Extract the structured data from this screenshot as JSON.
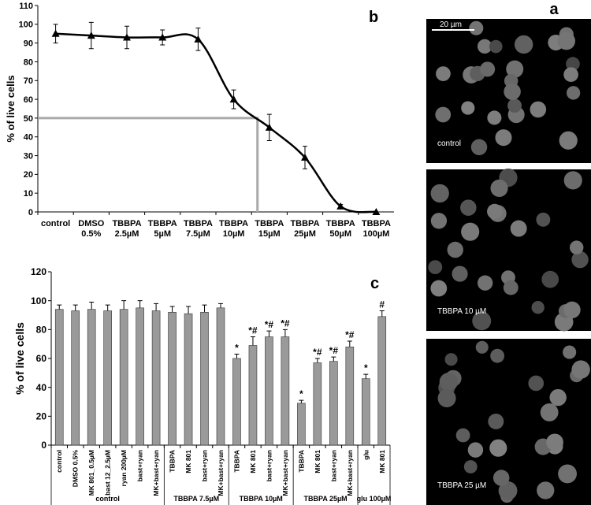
{
  "chart_data": [
    {
      "type": "line",
      "panel_label": "b",
      "y_label": "% of live cells",
      "color": "#000000",
      "categories": [
        "control",
        "DMSO\n0.5%",
        "TBBPA\n2.5µM",
        "TBBPA\n5µM",
        "TBBPA\n7.5µM",
        "TBBPA\n10µM",
        "TBBPA\n15µM",
        "TBBPA\n25µM",
        "TBBPA\n50µM",
        "TBBPA\n100µM"
      ],
      "values": [
        95,
        94,
        93,
        93,
        92,
        60,
        45,
        29,
        3,
        0
      ],
      "errors": [
        5,
        7,
        6,
        4,
        6,
        5,
        7,
        6,
        1,
        0
      ],
      "reference_y": 50,
      "reference_color": "#aaaaaa",
      "ylim": [
        0,
        110
      ],
      "yticks": [
        0,
        10,
        20,
        30,
        40,
        50,
        60,
        70,
        80,
        90,
        100,
        110
      ]
    },
    {
      "type": "bar",
      "panel_label": "c",
      "y_label": "% of live cells",
      "color": "#9a9a9a",
      "categories": [
        "control",
        "DMSO 0.5%",
        "MK 801_0.5µM",
        "bast 12_2.5µM",
        "ryan 200µM",
        "bast+ryan",
        "MK+bast+ryan",
        "TBBPA",
        "MK 801",
        "bast+ryan",
        "MK+bast+ryan",
        "TBBPA",
        "MK 801",
        "bast+ryan",
        "MK+bast+ryan",
        "TBBPA",
        "MK 801",
        "bast+ryan",
        "MK+bast+ryan",
        "glu",
        "MK 801"
      ],
      "values": [
        94,
        93,
        94,
        93,
        94,
        95,
        93,
        92,
        91,
        92,
        95,
        60,
        69,
        75,
        75,
        29,
        57,
        58,
        68,
        46,
        89
      ],
      "errors": [
        3,
        4,
        5,
        4,
        6,
        5,
        5,
        4,
        5,
        5,
        3,
        3,
        6,
        4,
        5,
        2,
        3,
        3,
        4,
        3,
        4
      ],
      "value_annotations": [
        null,
        null,
        null,
        null,
        null,
        null,
        null,
        null,
        null,
        null,
        null,
        "*",
        "*#",
        "*#",
        "*#",
        "*",
        "*#",
        "*#",
        "*#",
        "*",
        "#"
      ],
      "groups": [
        {
          "name": "control",
          "size": 7
        },
        {
          "name": "TBBPA 7.5µM",
          "size": 4
        },
        {
          "name": "TBBPA 10µM",
          "size": 4
        },
        {
          "name": "TBBPA 25µM",
          "size": 4
        },
        {
          "name": "glu 100µM",
          "size": 2
        }
      ],
      "ylim": [
        0,
        120
      ],
      "yticks": [
        0,
        20,
        40,
        60,
        80,
        100,
        120
      ]
    }
  ],
  "images": {
    "panel_label": "a",
    "scale_bar": "20 µm",
    "captions": [
      "control",
      "TBBPA 10 µM",
      "TBBPA 25 µM"
    ]
  }
}
